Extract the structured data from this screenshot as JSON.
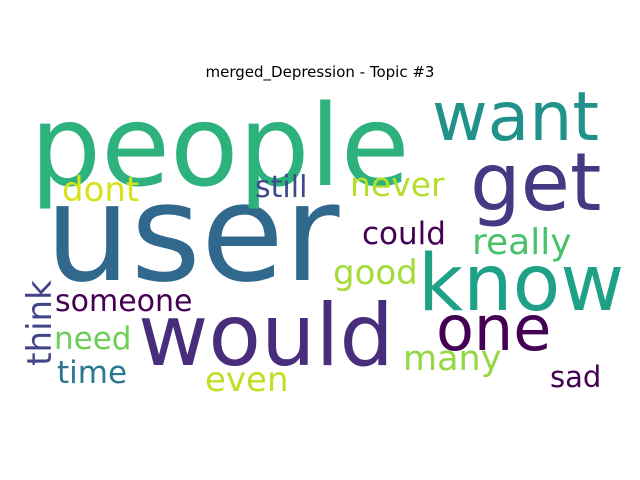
{
  "chart_data": {
    "type": "wordcloud",
    "title": "merged_Depression - Topic #3",
    "words": [
      {
        "text": "user",
        "color": "#31688e",
        "rotate": 0
      },
      {
        "text": "people",
        "color": "#2db27d",
        "rotate": 0
      },
      {
        "text": "want",
        "color": "#21918c",
        "rotate": 0
      },
      {
        "text": "get",
        "color": "#443983",
        "rotate": 0
      },
      {
        "text": "know",
        "color": "#1fa187",
        "rotate": 0
      },
      {
        "text": "would",
        "color": "#472d7b",
        "rotate": 0
      },
      {
        "text": "one",
        "color": "#440154",
        "rotate": 0
      },
      {
        "text": "dont",
        "color": "#d7e219",
        "rotate": 0
      },
      {
        "text": "still",
        "color": "#3e4a89",
        "rotate": 0
      },
      {
        "text": "never",
        "color": "#b5de2b",
        "rotate": 0
      },
      {
        "text": "could",
        "color": "#440154",
        "rotate": 0
      },
      {
        "text": "really",
        "color": "#4ac16d",
        "rotate": 0
      },
      {
        "text": "good",
        "color": "#a5db36",
        "rotate": 0
      },
      {
        "text": "someone",
        "color": "#440154",
        "rotate": 0
      },
      {
        "text": "think",
        "color": "#414487",
        "rotate": -90
      },
      {
        "text": "need",
        "color": "#6ece58",
        "rotate": 0
      },
      {
        "text": "many",
        "color": "#93d741",
        "rotate": 0
      },
      {
        "text": "time",
        "color": "#2a788e",
        "rotate": 0
      },
      {
        "text": "even",
        "color": "#c2df23",
        "rotate": 0
      },
      {
        "text": "sad",
        "color": "#440154",
        "rotate": 0
      }
    ]
  }
}
